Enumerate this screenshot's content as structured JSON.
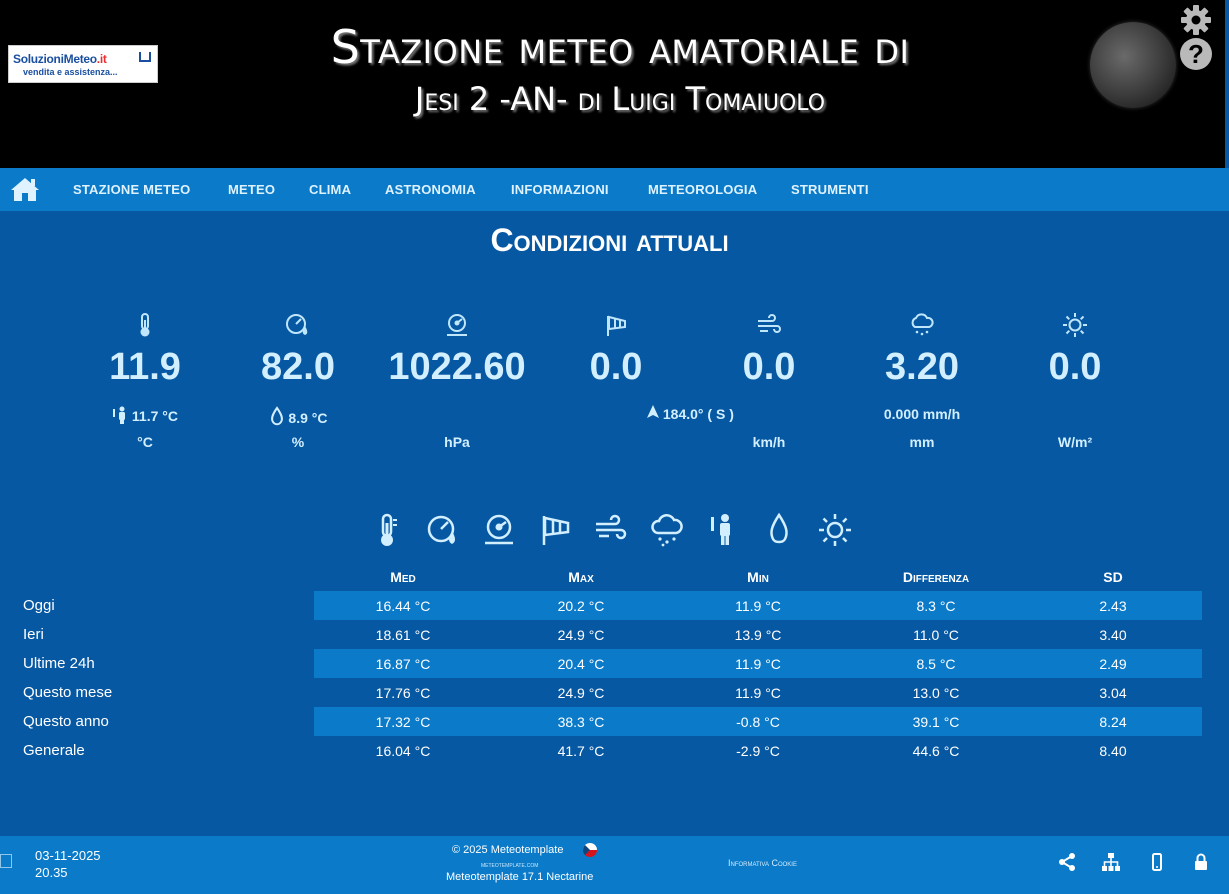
{
  "header": {
    "title_line1": "Stazione meteo amatoriale di",
    "title_line2": "Jesi 2 -AN- di Luigi Tomaiuolo",
    "logo_brand": "SoluzioniMeteo",
    "logo_tld": ".it",
    "logo_tagline": "vendita e assistenza...",
    "help_icon_text": "?"
  },
  "nav": {
    "items": [
      "STAZIONE METEO",
      "METEO",
      "CLIMA",
      "ASTRONOMIA",
      "INFORMAZIONI",
      "METEOROLOGIA",
      "STRUMENTI"
    ]
  },
  "section_title": "Condizioni attuali",
  "current": [
    {
      "icon": "thermometer-icon",
      "value": "11.9",
      "sub": "11.7 °C",
      "sub_icon": "person-icon",
      "unit": "°C"
    },
    {
      "icon": "humidity-icon",
      "value": "82.0",
      "sub": "8.9 °C",
      "sub_icon": "dewpoint-icon",
      "unit": "%"
    },
    {
      "icon": "pressure-icon",
      "value": "1022.60",
      "sub": "",
      "unit": "hPa"
    },
    {
      "icon": "windsock-icon",
      "value": "0.0",
      "sub": "",
      "unit": ""
    },
    {
      "icon": "wind-icon",
      "value": "0.0",
      "sub": "",
      "unit": "km/h"
    },
    {
      "icon": "rain-icon",
      "value": "3.20",
      "sub": "0.000 mm/h",
      "unit": "mm"
    },
    {
      "icon": "sun-icon",
      "value": "0.0",
      "sub": "",
      "unit": "W/m²"
    }
  ],
  "wind_direction": "184.0° ( S )",
  "icon_row": [
    "thermometer-icon",
    "humidity-icon",
    "pressure-icon",
    "windsock-icon",
    "wind-icon",
    "rain-icon",
    "person-icon",
    "dewpoint-icon",
    "sun-icon"
  ],
  "table": {
    "headers": [
      "Med",
      "Max",
      "Min",
      "Differenza",
      "SD"
    ],
    "rows": [
      {
        "label": "Oggi",
        "cells": [
          "16.44 °C",
          "20.2 °C",
          "11.9 °C",
          "8.3 °C",
          "2.43"
        ]
      },
      {
        "label": "Ieri",
        "cells": [
          "18.61 °C",
          "24.9 °C",
          "13.9 °C",
          "11.0 °C",
          "3.40"
        ]
      },
      {
        "label": "Ultime 24h",
        "cells": [
          "16.87 °C",
          "20.4 °C",
          "11.9 °C",
          "8.5 °C",
          "2.49"
        ]
      },
      {
        "label": "Questo mese",
        "cells": [
          "17.76 °C",
          "24.9 °C",
          "11.9 °C",
          "13.0 °C",
          "3.04"
        ]
      },
      {
        "label": "Questo anno",
        "cells": [
          "17.32 °C",
          "38.3 °C",
          "-0.8 °C",
          "39.1 °C",
          "8.24"
        ]
      },
      {
        "label": "Generale",
        "cells": [
          "16.04 °C",
          "41.7 °C",
          "-2.9 °C",
          "44.6 °C",
          "8.40"
        ]
      }
    ]
  },
  "footer": {
    "date": "03-11-2025",
    "time": "20.35",
    "copyright": "© 2025  Meteotemplate",
    "site": "meteotemplate.com",
    "version": "Meteotemplate 17.1 Nectarine",
    "cookie": "Informativa Cookie"
  },
  "colors": {
    "background": "#0758a3",
    "nav": "#0a7ac9",
    "stripe": "#0a7ac9",
    "header": "#000000",
    "value_text": "#d2efff"
  }
}
